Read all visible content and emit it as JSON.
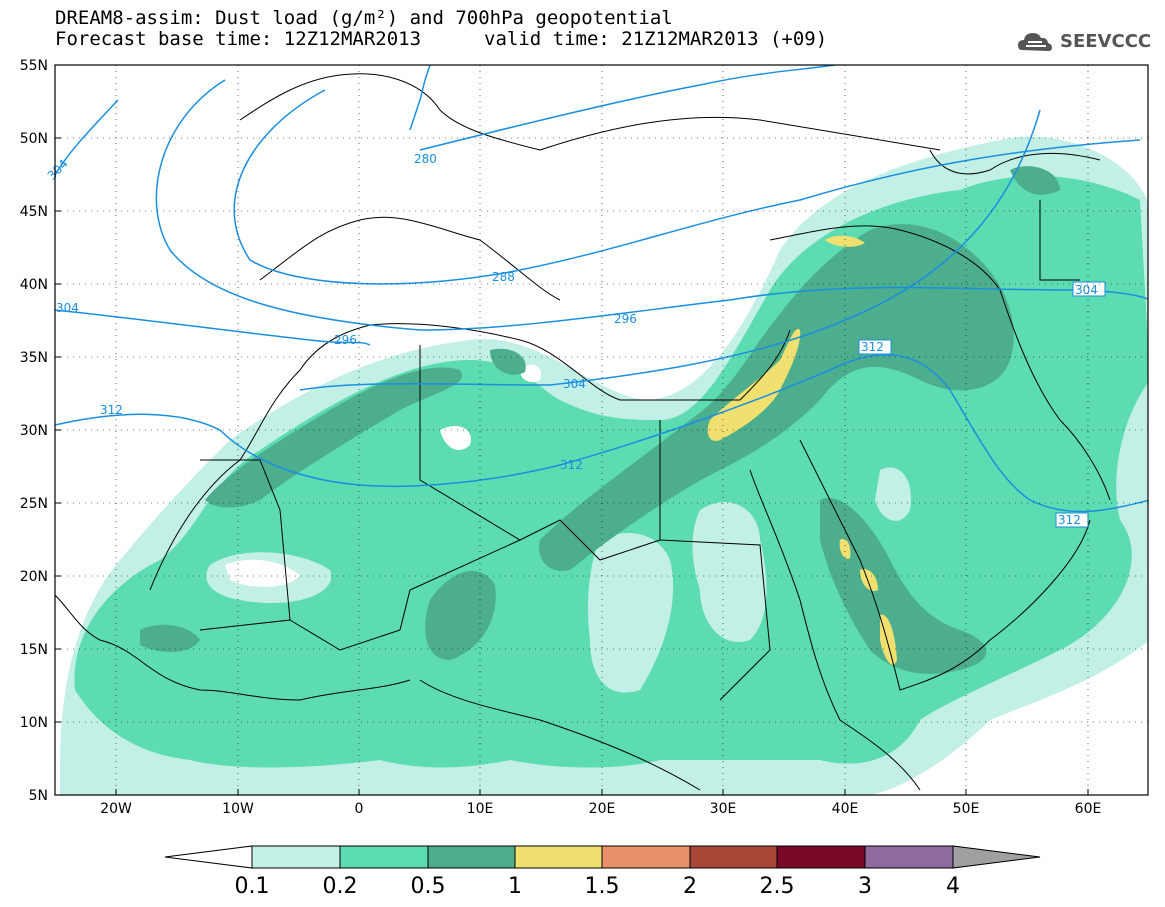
{
  "header": {
    "title_line1": "DREAM8-assim: Dust load (g/m²) and 700hPa geopotential",
    "title_line2": "Forecast base time: 12Z12MAR2013",
    "valid_time": "valid time: 21Z12MAR2013 (+09)",
    "logo_text": "SEEVCCC",
    "logo_icon": "cloud-icon"
  },
  "axes": {
    "lat_labels": [
      "55N",
      "50N",
      "45N",
      "40N",
      "35N",
      "30N",
      "25N",
      "20N",
      "15N",
      "10N",
      "5N"
    ],
    "lon_labels": [
      "20W",
      "10W",
      "0",
      "10E",
      "20E",
      "30E",
      "40E",
      "50E",
      "60E"
    ]
  },
  "contours": {
    "color": "#1a8fe0",
    "labels": [
      "304",
      "280",
      "288",
      "304",
      "296",
      "296",
      "304",
      "312",
      "312",
      "312",
      "312"
    ]
  },
  "colorbar": {
    "ticks": [
      "0.1",
      "0.2",
      "0.5",
      "1",
      "1.5",
      "2",
      "2.5",
      "3",
      "4"
    ],
    "colors": [
      "#ffffff",
      "#c2f0e6",
      "#5cdcb0",
      "#4cae8c",
      "#f0e070",
      "#e8906a",
      "#a84838",
      "#780a28",
      "#8e6aa0",
      "#a0a0a0"
    ]
  }
}
